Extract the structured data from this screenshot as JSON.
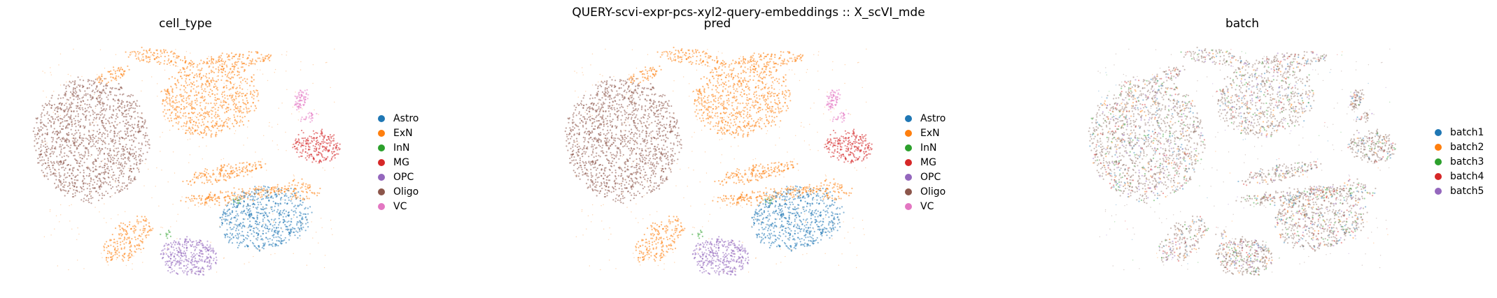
{
  "figure": {
    "suptitle": "QUERY-scvi-expr-pcs-xyl2-query-embeddings :: X_scVI_mde"
  },
  "chart_data": [
    {
      "type": "scatter",
      "title": "cell_type",
      "xlabel": "",
      "ylabel": "",
      "axes_visible": false,
      "grid": false,
      "legend_position": "right",
      "series": [
        {
          "name": "Astro",
          "color": "#1f77b4"
        },
        {
          "name": "ExN",
          "color": "#ff7f0e"
        },
        {
          "name": "InN",
          "color": "#2ca02c"
        },
        {
          "name": "MG",
          "color": "#d62728"
        },
        {
          "name": "OPC",
          "color": "#9467bd"
        },
        {
          "name": "Oligo",
          "color": "#8c564b"
        },
        {
          "name": "VC",
          "color": "#e377c2"
        }
      ]
    },
    {
      "type": "scatter",
      "title": "pred",
      "xlabel": "",
      "ylabel": "",
      "axes_visible": false,
      "grid": false,
      "legend_position": "right",
      "series": [
        {
          "name": "Astro",
          "color": "#1f77b4"
        },
        {
          "name": "ExN",
          "color": "#ff7f0e"
        },
        {
          "name": "InN",
          "color": "#2ca02c"
        },
        {
          "name": "MG",
          "color": "#d62728"
        },
        {
          "name": "OPC",
          "color": "#9467bd"
        },
        {
          "name": "Oligo",
          "color": "#8c564b"
        },
        {
          "name": "VC",
          "color": "#e377c2"
        }
      ]
    },
    {
      "type": "scatter",
      "title": "batch",
      "xlabel": "",
      "ylabel": "",
      "axes_visible": false,
      "grid": false,
      "legend_position": "right",
      "series": [
        {
          "name": "batch1",
          "color": "#1f77b4"
        },
        {
          "name": "batch2",
          "color": "#ff7f0e"
        },
        {
          "name": "batch3",
          "color": "#2ca02c"
        },
        {
          "name": "batch4",
          "color": "#d62728"
        },
        {
          "name": "batch5",
          "color": "#9467bd"
        }
      ]
    }
  ]
}
